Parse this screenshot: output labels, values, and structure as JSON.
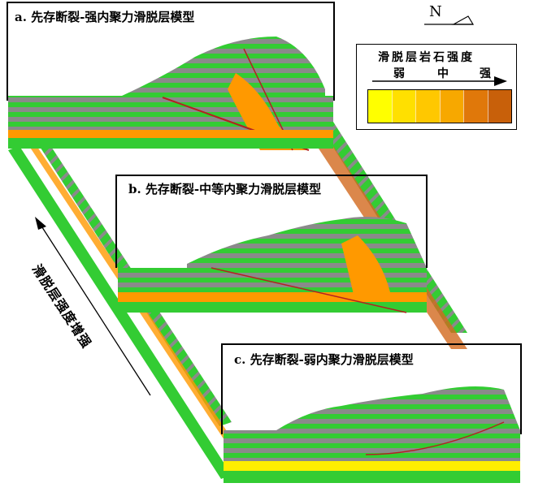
{
  "panels": [
    {
      "title": "a. 先存断裂-强内聚力滑脱层模型"
    },
    {
      "title": "b. 先存断裂-中等内聚力滑脱层模型"
    },
    {
      "title": "c. 先存断裂-弱内聚力滑脱层模型"
    }
  ],
  "north_label": "N",
  "legend": {
    "title": "滑脱层岩石强度",
    "weak": "弱",
    "mid": "中",
    "strong": "强",
    "colors": [
      "#ffff00",
      "#ffe000",
      "#ffc800",
      "#f7a800",
      "#e0780a",
      "#c8600a"
    ]
  },
  "side_label": "滑脱层强度增强",
  "colors": {
    "green": "#33cc33",
    "gray": "#8a8a8a",
    "orange": "#ff9900",
    "dark_orange": "#d2691e",
    "yellow": "#ffee00",
    "fault": "#b22222"
  }
}
